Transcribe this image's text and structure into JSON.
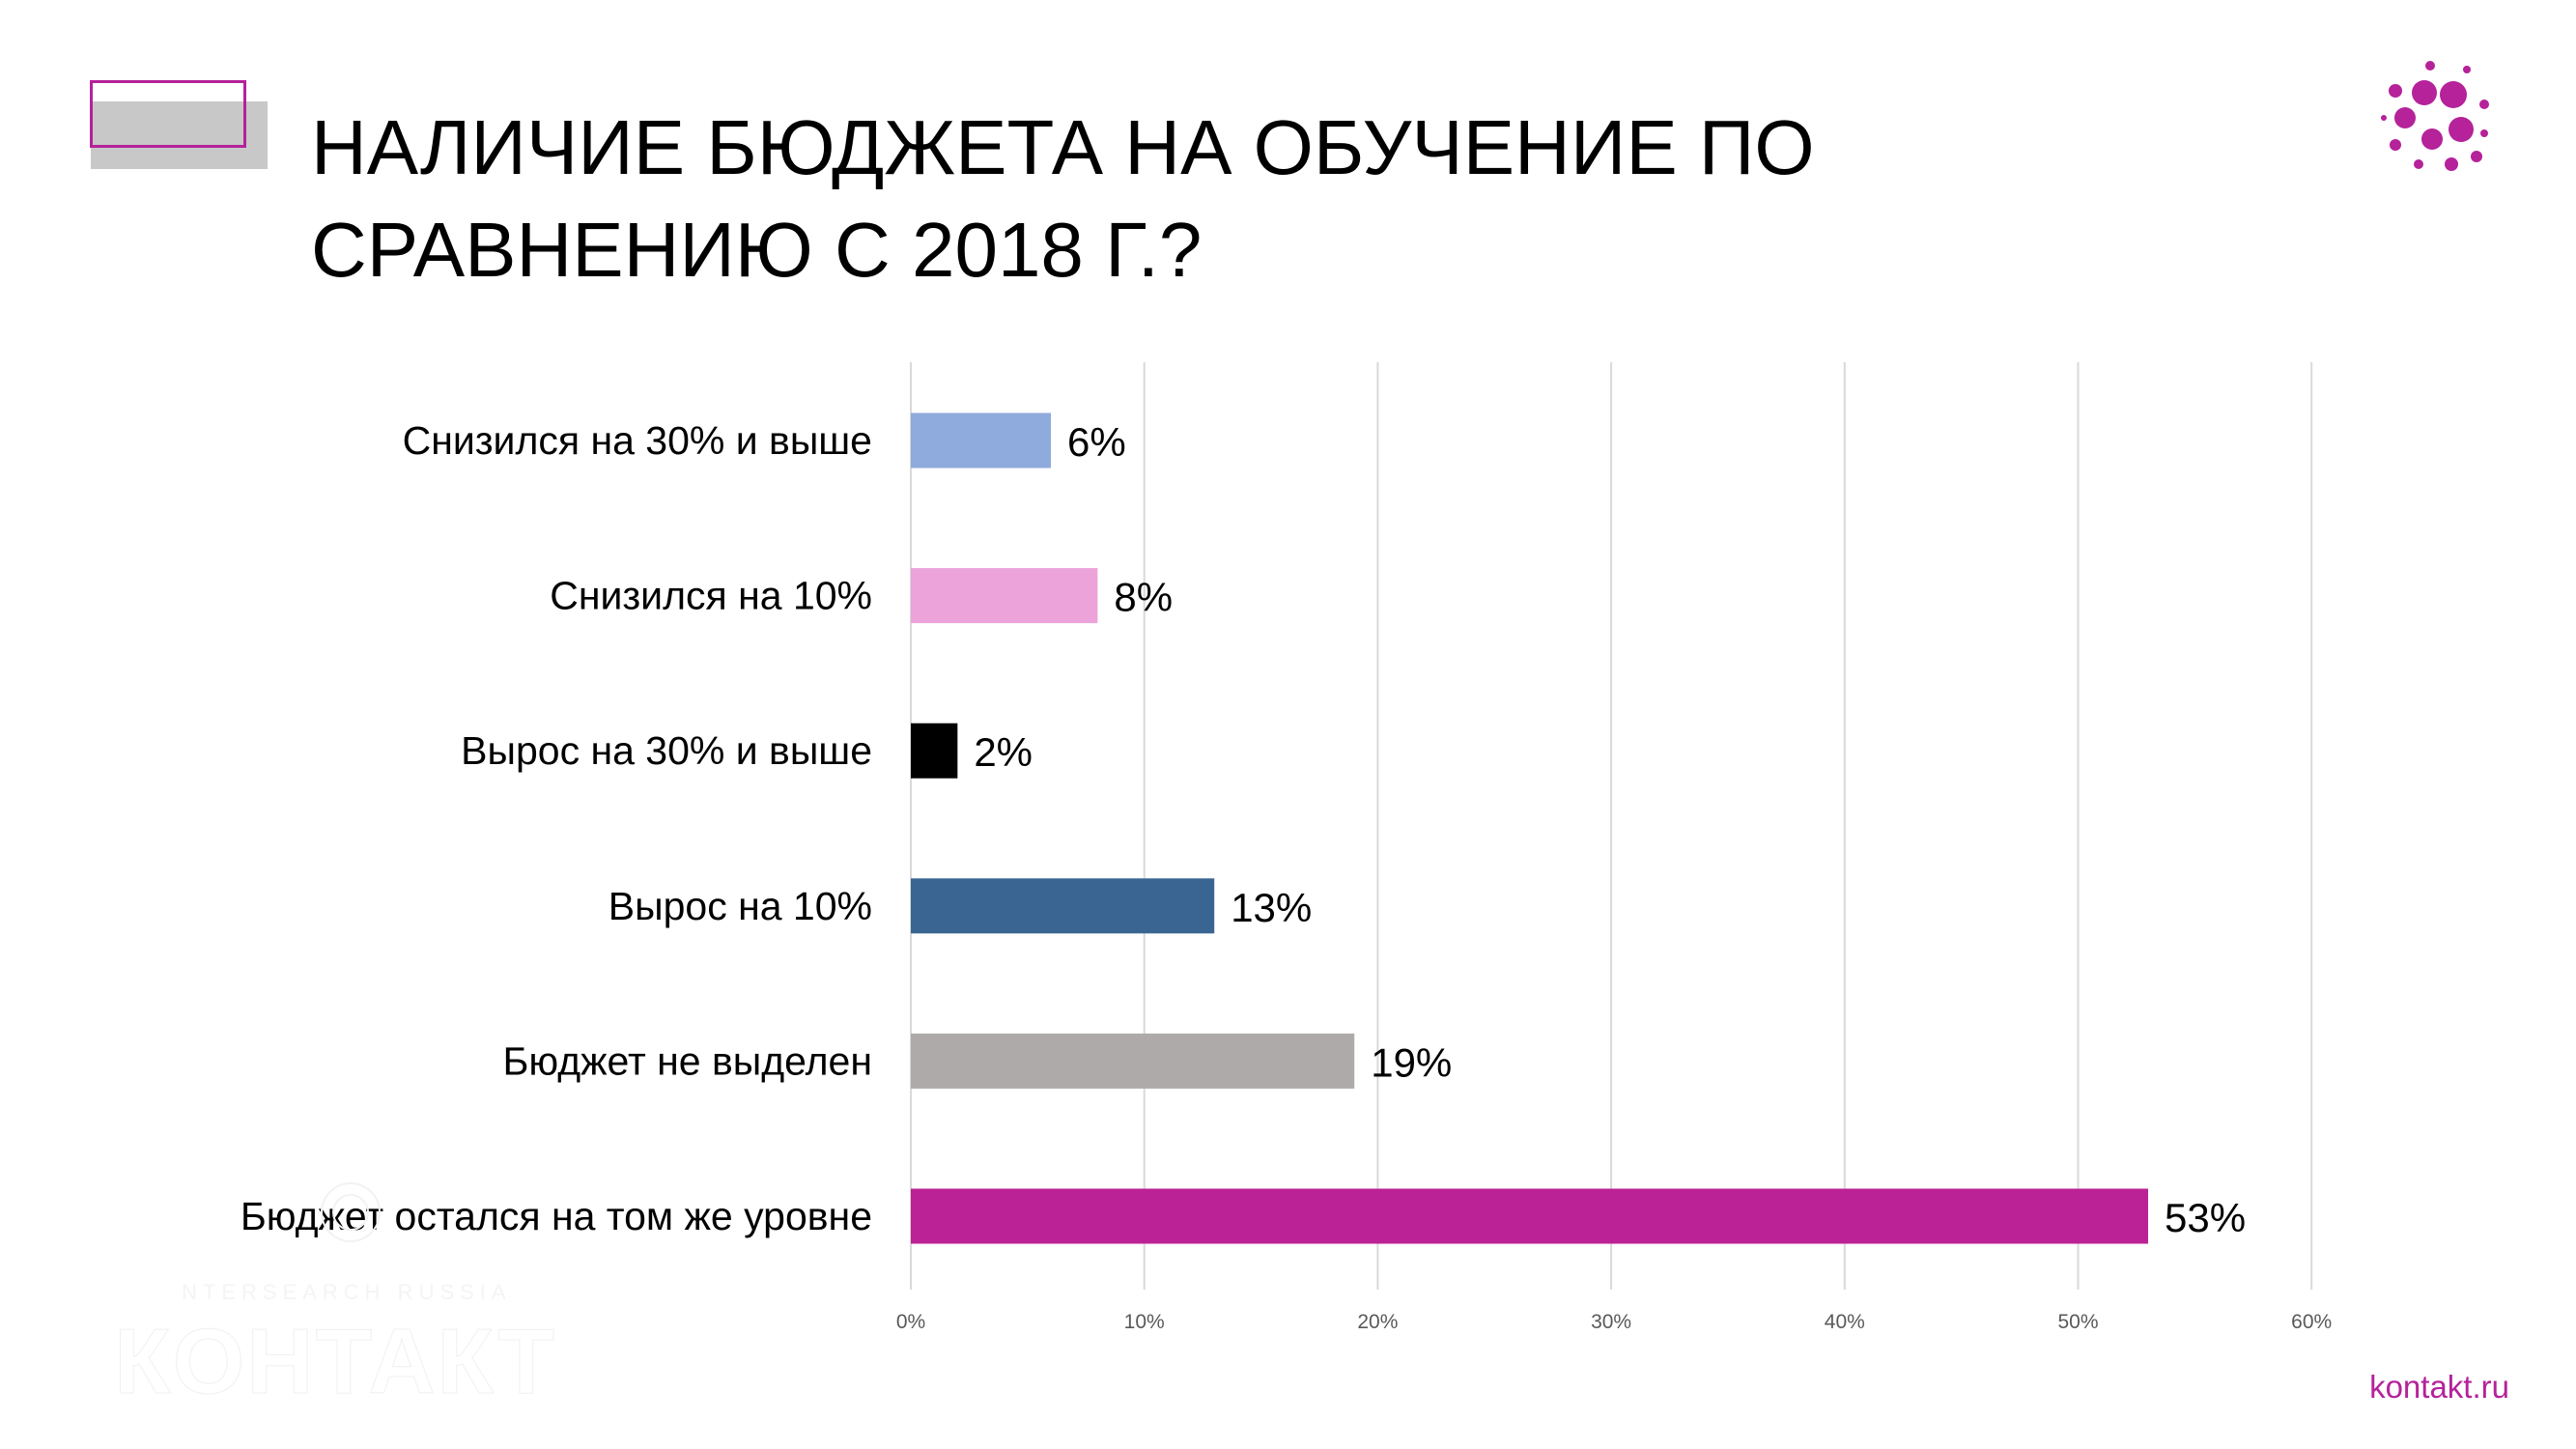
{
  "slide": {
    "title_line1": "НАЛИЧИЕ БЮДЖЕТА НА ОБУЧЕНИЕ ПО",
    "title_line2": "СРАВНЕНИЮ С 2018 Г.?",
    "footer_link": "kontakt.ru",
    "accent_color": "#b5229a",
    "logo_icon": "dots-cluster-icon",
    "watermark": {
      "line1": "NTERSEARCH RUSSIA",
      "line2": "КОНТАКТ"
    }
  },
  "chart_data": {
    "type": "bar",
    "orientation": "horizontal",
    "categories": [
      "Снизился на 30% и выше",
      "Снизился на 10%",
      "Вырос на 30% и выше",
      "Вырос на 10%",
      "Бюджет не выделен",
      "Бюджет остался на том же уровне"
    ],
    "values": [
      6,
      8,
      2,
      13,
      19,
      53
    ],
    "value_labels": [
      "6%",
      "8%",
      "2%",
      "13%",
      "19%",
      "53%"
    ],
    "colors": [
      "#8faadc",
      "#eba3d9",
      "#000000",
      "#3a6593",
      "#aeaaaa",
      "#bb2296"
    ],
    "xlim": [
      0,
      60
    ],
    "xticks": [
      0,
      10,
      20,
      30,
      40,
      50,
      60
    ],
    "xtick_labels": [
      "0%",
      "10%",
      "20%",
      "30%",
      "40%",
      "50%",
      "60%"
    ],
    "grid": true,
    "xlabel": "",
    "ylabel": ""
  }
}
